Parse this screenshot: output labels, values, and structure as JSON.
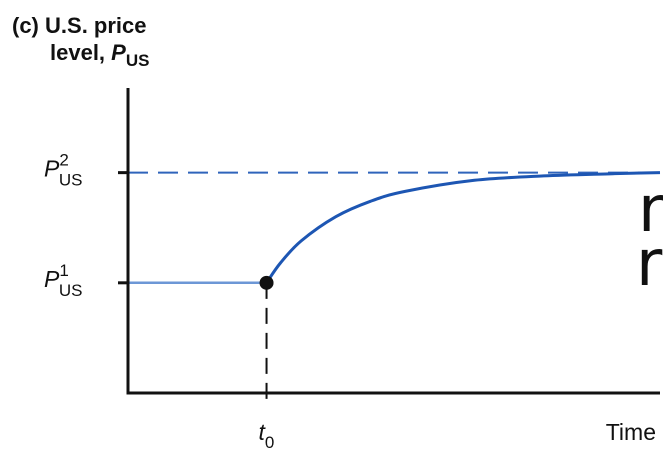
{
  "chart_data": {
    "type": "line",
    "panel_label": "(c)",
    "title_line1": "U.S. price",
    "title_line2_prefix": "level, ",
    "title_symbol": "P",
    "title_symbol_sub": "US",
    "xlabel": "Time",
    "x_marker": {
      "symbol": "t",
      "sub": "0"
    },
    "y_levels": [
      {
        "symbol": "P",
        "sup": "1",
        "sub": "US",
        "value": 1
      },
      {
        "symbol": "P",
        "sup": "2",
        "sub": "US",
        "value": 2
      }
    ],
    "series": [
      {
        "segment": "before",
        "x": [
          0,
          1
        ],
        "y": [
          1,
          1
        ]
      },
      {
        "segment": "after",
        "x": [
          1,
          1.1,
          1.25,
          1.5,
          1.75,
          2,
          2.5,
          3,
          3.5,
          3.84
        ],
        "y": [
          1,
          1.18,
          1.38,
          1.6,
          1.74,
          1.83,
          1.93,
          1.97,
          1.99,
          2.0
        ]
      }
    ],
    "xlim": [
      0,
      3.84
    ],
    "ylim": [
      0,
      2.75
    ],
    "colors": {
      "before_line": "#6c97d6",
      "after_line": "#1d56b3",
      "dashed_level": "#2f64bb",
      "axis": "#111111",
      "point": "#111111"
    }
  },
  "cropped_fragment_glyphs": [
    "n",
    "r"
  ]
}
